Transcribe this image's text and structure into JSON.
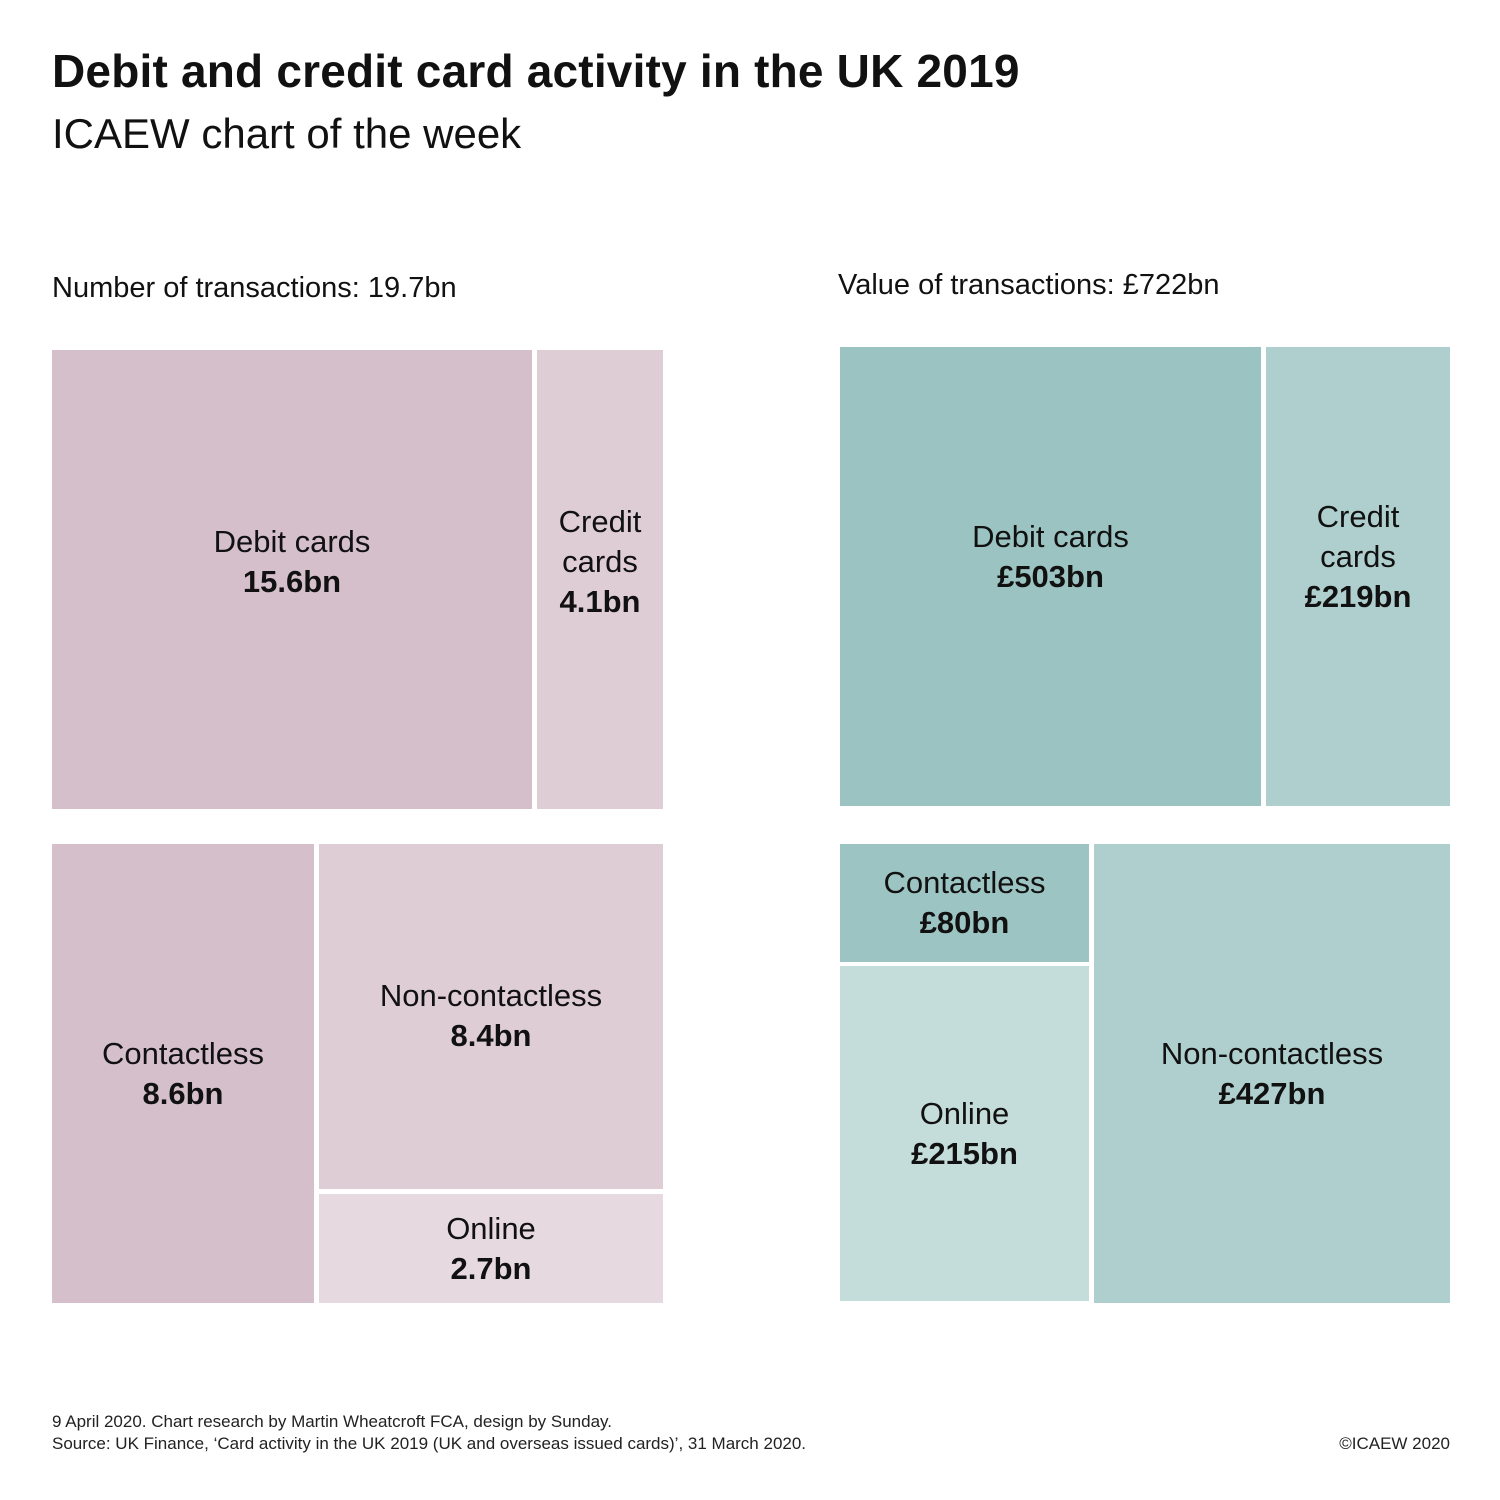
{
  "title": "Debit and credit card activity in the UK 2019",
  "subtitle": "ICAEW chart of the week",
  "footer": {
    "line1": "9 April 2020. Chart research by Martin Wheatcroft FCA, design by Sunday.",
    "line2": "Source: UK Finance, ‘Card activity in the UK 2019 (UK and overseas issued cards)’, 31 March 2020.",
    "copyright": "©ICAEW 2020"
  },
  "chart_data": [
    {
      "type": "treemap",
      "title": "Number of transactions: 19.7bn",
      "total": 19.7,
      "unit": "bn",
      "cards": [
        {
          "label": "Debit cards",
          "value": 15.6,
          "display": "15.6bn",
          "color": "#d4bfcb"
        },
        {
          "label": "Credit\ncards",
          "value": 4.1,
          "display": "4.1bn",
          "color": "#dfcdd6"
        }
      ],
      "channels": [
        {
          "label": "Contactless",
          "value": 8.6,
          "display": "8.6bn",
          "color": "#d4bfcb"
        },
        {
          "label": "Non-contactless",
          "value": 8.4,
          "display": "8.4bn",
          "color": "#dfcdd6"
        },
        {
          "label": "Online",
          "value": 2.7,
          "display": "2.7bn",
          "color": "#e6d9e0"
        }
      ]
    },
    {
      "type": "treemap",
      "title": "Value of transactions: £722bn",
      "total": 722,
      "unit": "£bn",
      "cards": [
        {
          "label": "Debit cards",
          "value": 503,
          "display": "£503bn",
          "color": "#9bc3c1"
        },
        {
          "label": "Credit\ncards",
          "value": 219,
          "display": "£219bn",
          "color": "#aecfcd"
        }
      ],
      "channels": [
        {
          "label": "Contactless",
          "value": 80,
          "display": "£80bn",
          "color": "#9cc4c2"
        },
        {
          "label": "Online",
          "value": 215,
          "display": "£215bn",
          "color": "#c4dcda"
        },
        {
          "label": "Non-contactless",
          "value": 427,
          "display": "£427bn",
          "color": "#aecfcd"
        }
      ]
    }
  ]
}
